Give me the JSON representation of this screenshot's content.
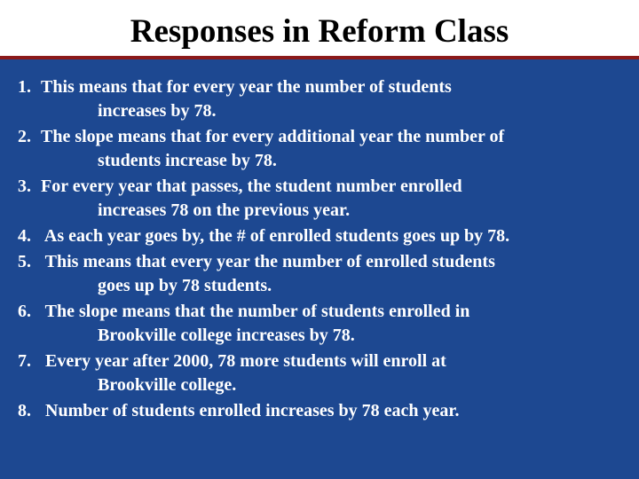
{
  "slide": {
    "title": "Responses in Reform Class",
    "background_color": "#1d4891",
    "title_bg_color": "#ffffff",
    "title_underline_color": "#8b1a1a",
    "text_color": "#ffffff",
    "title_text_color": "#000000",
    "title_fontsize": 37,
    "body_fontsize": 20,
    "items": [
      {
        "num": "1.",
        "line1": "This means that for every year the number of students",
        "line2": "increases by 78."
      },
      {
        "num": "2.",
        "line1": "The slope means that for every additional year the number of",
        "line2": "students increase by 78."
      },
      {
        "num": "3.",
        "line1": "For every year that passes, the student number enrolled",
        "line2": "increases 78 on the previous year."
      },
      {
        "num": "4.",
        "line1": " As each year goes by, the # of enrolled students goes up by 78.",
        "line2": ""
      },
      {
        "num": "5.",
        "line1": " This means that every year the number of enrolled students",
        "line2": "goes up by 78 students."
      },
      {
        "num": "6.",
        "line1": " The slope means that the number of students enrolled in",
        "line2": "Brookville college increases by 78."
      },
      {
        "num": "7.",
        "line1": "  Every year after 2000, 78 more students will enroll at",
        "line2": "Brookville college."
      },
      {
        "num": "8.",
        "line1": "  Number of students enrolled increases by 78 each year.",
        "line2": ""
      }
    ]
  }
}
